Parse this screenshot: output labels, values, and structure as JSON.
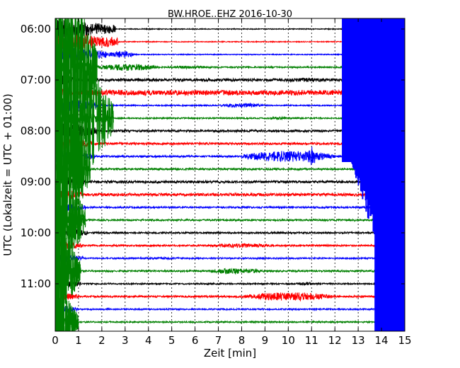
{
  "chart_data": {
    "type": "line",
    "title": "BW.HROE..EHZ 2016-10-30",
    "xlabel": "Zeit  [min]",
    "ylabel": "UTC (Lokalzeit = UTC + 01:00)",
    "xlim": [
      0,
      15
    ],
    "x_ticks": [
      0,
      1,
      2,
      3,
      4,
      5,
      6,
      7,
      8,
      9,
      10,
      11,
      12,
      13,
      14,
      15
    ],
    "y_ticks": [
      "06:00",
      "07:00",
      "08:00",
      "09:00",
      "10:00",
      "11:00"
    ],
    "grid": true,
    "rows": 24,
    "row_interval_min": 15,
    "start_time": "06:00",
    "series_colors": [
      "#000000",
      "#ff0000",
      "#0000ff",
      "#008000"
    ],
    "row_activity": [
      {
        "row": 0,
        "noise": 0.6,
        "events": [
          [
            0,
            2.6,
            14
          ]
        ]
      },
      {
        "row": 1,
        "noise": 0.6,
        "events": [
          [
            0,
            2.7,
            14
          ]
        ]
      },
      {
        "row": 2,
        "noise": 0.7,
        "events": [
          [
            0,
            2.2,
            12
          ],
          [
            2.2,
            3.4,
            5
          ]
        ]
      },
      {
        "row": 3,
        "noise": 1.0,
        "events": [
          [
            0,
            1.8,
            14
          ],
          [
            1.8,
            4.5,
            5
          ],
          [
            4.5,
            7,
            2
          ]
        ]
      },
      {
        "row": 4,
        "noise": 2.0,
        "events": [
          [
            0,
            0.8,
            9
          ],
          [
            9.5,
            12,
            3
          ],
          [
            12.3,
            15,
            3
          ]
        ]
      },
      {
        "row": 5,
        "noise": 3.5,
        "events": [
          [
            0,
            1.2,
            7
          ],
          [
            1.2,
            3.9,
            4
          ]
        ]
      },
      {
        "row": 6,
        "noise": 0.9,
        "events": [
          [
            0,
            1.8,
            12
          ],
          [
            7.0,
            9.0,
            3
          ]
        ]
      },
      {
        "row": 7,
        "noise": 1.0,
        "events": [
          [
            0,
            2.5,
            10
          ],
          [
            9.0,
            10.2,
            2
          ]
        ]
      },
      {
        "row": 8,
        "noise": 1.5,
        "events": [
          [
            0,
            1.8,
            12
          ]
        ]
      },
      {
        "row": 9,
        "noise": 1.5,
        "events": [
          [
            0,
            1.6,
            10
          ],
          [
            12.3,
            15,
            3
          ]
        ]
      },
      {
        "row": 10,
        "noise": 1.3,
        "events": [
          [
            0,
            1.7,
            9
          ],
          [
            8.0,
            12.0,
            8
          ],
          [
            10.8,
            11.2,
            14
          ]
        ]
      },
      {
        "row": 11,
        "noise": 1.3,
        "events": [
          [
            0,
            1.5,
            9
          ]
        ]
      },
      {
        "row": 12,
        "noise": 1.8,
        "events": [
          [
            0,
            1.3,
            9
          ],
          [
            5.5,
            7.0,
            2
          ]
        ]
      },
      {
        "row": 13,
        "noise": 2.0,
        "events": [
          [
            0,
            1.2,
            9
          ]
        ]
      },
      {
        "row": 14,
        "noise": 1.2,
        "events": [
          [
            0,
            1.3,
            8
          ]
        ]
      },
      {
        "row": 15,
        "noise": 1.2,
        "events": [
          [
            0,
            1.3,
            8
          ]
        ]
      },
      {
        "row": 16,
        "noise": 1.2,
        "events": [
          [
            0,
            1.4,
            8
          ]
        ]
      },
      {
        "row": 17,
        "noise": 1.2,
        "events": [
          [
            0,
            1.2,
            7
          ],
          [
            6.5,
            9.5,
            3
          ]
        ]
      },
      {
        "row": 18,
        "noise": 1.0,
        "events": [
          [
            0,
            1.2,
            7
          ],
          [
            3.0,
            6.0,
            1.5
          ]
        ]
      },
      {
        "row": 19,
        "noise": 1.2,
        "events": [
          [
            0,
            1.1,
            7
          ],
          [
            6.5,
            9.0,
            4
          ]
        ]
      },
      {
        "row": 20,
        "noise": 1.0,
        "events": [
          [
            0,
            1.1,
            7
          ],
          [
            10.2,
            11.5,
            2
          ]
        ]
      },
      {
        "row": 21,
        "noise": 1.3,
        "events": [
          [
            0,
            1.0,
            7
          ],
          [
            8.0,
            12.0,
            6
          ]
        ]
      },
      {
        "row": 22,
        "noise": 1.0,
        "events": [
          [
            0,
            1.0,
            7
          ]
        ]
      },
      {
        "row": 23,
        "noise": 1.0,
        "events": [
          [
            0,
            1.0,
            7
          ]
        ]
      }
    ],
    "blue_saturation_block": {
      "x_start": 12.3,
      "x_end": 15,
      "ends_after_row": 10
    }
  }
}
